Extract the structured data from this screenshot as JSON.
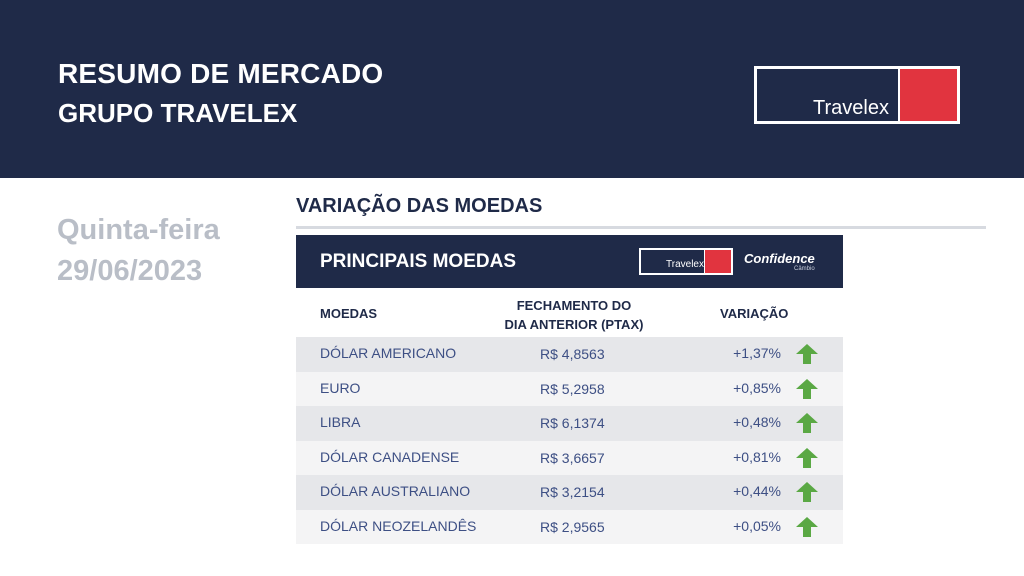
{
  "header": {
    "title_line1": "RESUMO DE MERCADO",
    "title_line2": "GRUPO TRAVELEX",
    "logo_text": "Travelex"
  },
  "date": {
    "weekday": "Quinta-feira",
    "date": "29/06/2023"
  },
  "section": {
    "title": "VARIAÇÃO DAS MOEDAS"
  },
  "panel": {
    "title": "PRINCIPAIS MOEDAS",
    "logo_travelex": "Travelex",
    "logo_confidence": "Confidence",
    "logo_confidence_sub": "Câmbio"
  },
  "table": {
    "columns": {
      "currency": "MOEDAS",
      "close_line1": "FECHAMENTO DO",
      "close_line2": "DIA ANTERIOR (PTAX)",
      "change": "VARIAÇÃO"
    },
    "rows": [
      {
        "name": "DÓLAR AMERICANO",
        "value": "R$ 4,8563",
        "change": "+1,37%",
        "direction": "up"
      },
      {
        "name": "EURO",
        "value": "R$ 5,2958",
        "change": "+0,85%",
        "direction": "up"
      },
      {
        "name": "LIBRA",
        "value": "R$ 6,1374",
        "change": "+0,48%",
        "direction": "up"
      },
      {
        "name": "DÓLAR CANADENSE",
        "value": "R$ 3,6657",
        "change": "+0,81%",
        "direction": "up"
      },
      {
        "name": "DÓLAR AUSTRALIANO",
        "value": "R$ 3,2154",
        "change": "+0,44%",
        "direction": "up"
      },
      {
        "name": "DÓLAR NEOZELANDÊS",
        "value": "R$ 2,9565",
        "change": "+0,05%",
        "direction": "up"
      }
    ]
  },
  "colors": {
    "navy": "#1f2a48",
    "red": "#e1343f",
    "arrow_green": "#5aa844"
  }
}
